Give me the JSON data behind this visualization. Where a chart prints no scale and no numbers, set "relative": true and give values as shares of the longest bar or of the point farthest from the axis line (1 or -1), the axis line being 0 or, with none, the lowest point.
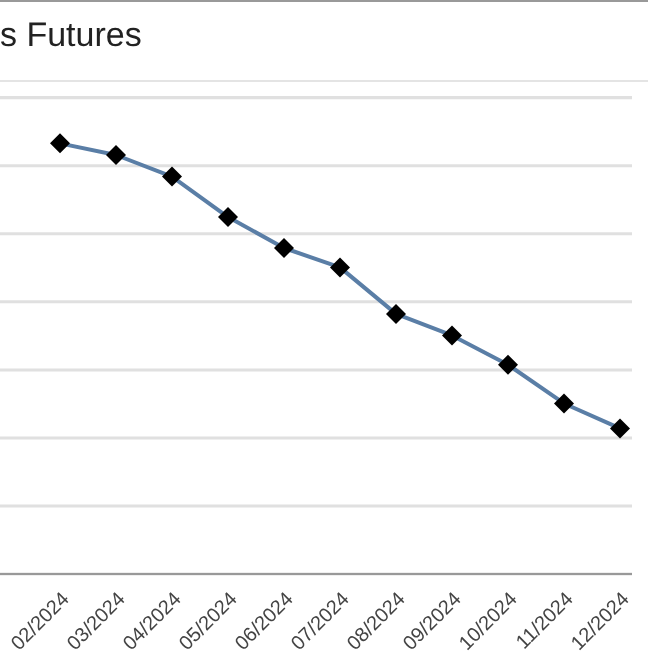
{
  "chart_data": {
    "type": "line",
    "title": "s Futures",
    "relative": true,
    "grid": "y",
    "marker": "diamond",
    "line_style": "solid",
    "categories": [
      "02/2024",
      "03/2024",
      "04/2024",
      "05/2024",
      "06/2024",
      "07/2024",
      "08/2024",
      "09/2024",
      "10/2024",
      "11/2024",
      "12/2024"
    ],
    "series": [
      {
        "color": "#5a7ea6",
        "values": [
          1,
          0.973,
          0.923,
          0.829,
          0.757,
          0.712,
          0.604,
          0.554,
          0.486,
          0.396,
          0.338
        ]
      }
    ]
  }
}
